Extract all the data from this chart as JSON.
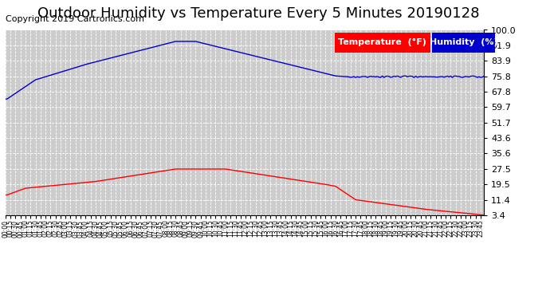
{
  "title": "Outdoor Humidity vs Temperature Every 5 Minutes 20190128",
  "copyright": "Copyright 2019 Cartronics.com",
  "legend_temp": "Temperature  (°F)",
  "legend_hum": "Humidity  (%)",
  "legend_temp_bg": "#ff0000",
  "legend_hum_bg": "#0000cc",
  "bg_color": "#ffffff",
  "plot_bg_color": "#cccccc",
  "grid_color": "#ffffff",
  "line_color_temp": "#ff0000",
  "line_color_hum": "#0000cc",
  "title_fontsize": 13,
  "copyright_fontsize": 8,
  "ylabel_right_values": [
    100.0,
    91.9,
    83.9,
    75.8,
    67.8,
    59.7,
    51.7,
    43.6,
    35.6,
    27.5,
    19.5,
    11.4,
    3.4
  ],
  "ylim": [
    3.4,
    100.0
  ]
}
